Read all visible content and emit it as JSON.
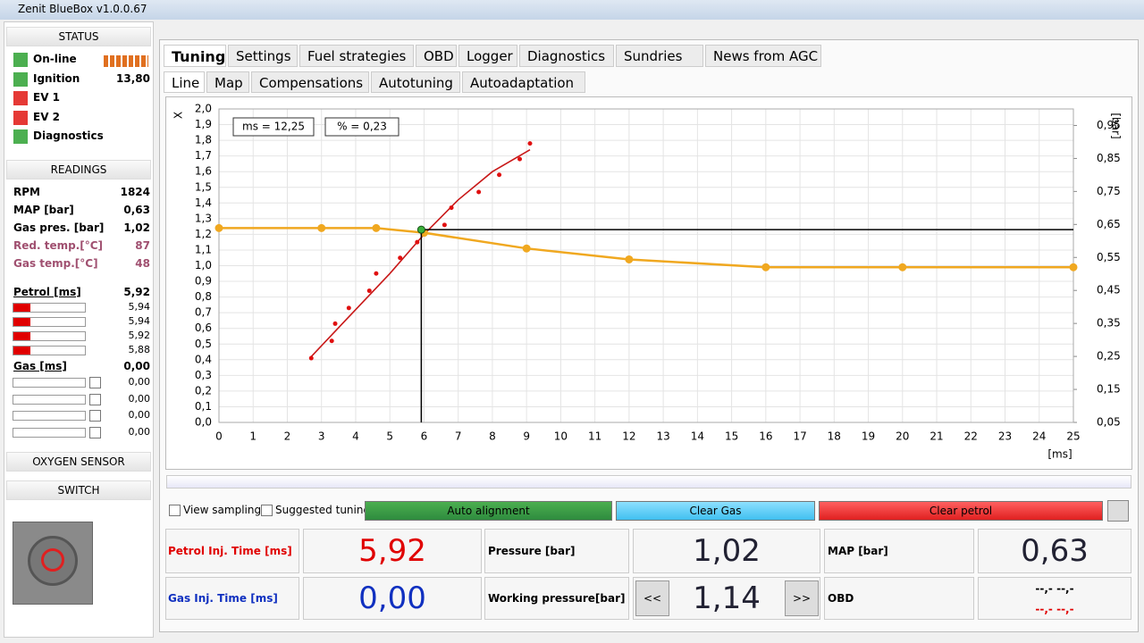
{
  "window": {
    "title": "Zenit BlueBox v1.0.0.67"
  },
  "sidebar": {
    "status": {
      "title": "STATUS",
      "items": [
        {
          "label": "On-line"
        },
        {
          "label": "Ignition",
          "value": "13,80"
        },
        {
          "label": "EV 1"
        },
        {
          "label": "EV 2"
        },
        {
          "label": "Diagnostics"
        }
      ]
    },
    "readings": {
      "title": "READINGS",
      "rows": [
        {
          "label": "RPM",
          "value": "1824"
        },
        {
          "label": "MAP [bar]",
          "value": "0,63"
        },
        {
          "label": "Gas pres. [bar]",
          "value": "1,02"
        },
        {
          "label": "Red. temp.[°C]",
          "value": "87"
        },
        {
          "label": "Gas temp.[°C]",
          "value": "48"
        }
      ]
    },
    "petrol": {
      "label": "Petrol [ms]",
      "value": "5,92",
      "injectors": [
        "5,94",
        "5,94",
        "5,92",
        "5,88"
      ]
    },
    "gas": {
      "label": "Gas [ms]",
      "value": "0,00",
      "injectors": [
        "0,00",
        "0,00",
        "0,00",
        "0,00"
      ]
    },
    "oxygen": {
      "title": "OXYGEN SENSOR"
    },
    "switch": {
      "title": "SWITCH"
    }
  },
  "tabs": [
    "Tuning",
    "Settings",
    "Fuel strategies",
    "OBD",
    "Logger",
    "Diagnostics",
    "Sundries",
    "News from AGC"
  ],
  "subtabs": [
    "Line",
    "Map",
    "Compensations",
    "Autotuning",
    "Autoadaptation"
  ],
  "chart": {
    "type": "line",
    "ylabel": "X",
    "y2label": "[bar]",
    "xlabel": "[ms]",
    "boxes": [
      "ms = 12,25",
      "% = 0,23"
    ],
    "xlim": [
      0,
      25
    ],
    "ylim": [
      0,
      2
    ],
    "y2lim": [
      0.05,
      1.0
    ],
    "grid": true,
    "xticks": [
      0,
      1,
      2,
      3,
      4,
      5,
      6,
      7,
      8,
      9,
      10,
      11,
      12,
      13,
      14,
      15,
      16,
      17,
      18,
      19,
      20,
      21,
      22,
      23,
      24,
      25
    ],
    "yticks": [
      {
        "value": 0,
        "label": "0,0"
      },
      {
        "value": 0.1,
        "label": "0,1"
      },
      {
        "value": 0.2,
        "label": "0,2"
      },
      {
        "value": 0.3,
        "label": "0,3"
      },
      {
        "value": 0.4,
        "label": "0,4"
      },
      {
        "value": 0.5,
        "label": "0,5"
      },
      {
        "value": 0.6,
        "label": "0,6"
      },
      {
        "value": 0.7,
        "label": "0,7"
      },
      {
        "value": 0.8,
        "label": "0,8"
      },
      {
        "value": 0.9,
        "label": "0,9"
      },
      {
        "value": 1.0,
        "label": "1,0"
      },
      {
        "value": 1.1,
        "label": "1,1"
      },
      {
        "value": 1.2,
        "label": "1,2"
      },
      {
        "value": 1.3,
        "label": "1,3"
      },
      {
        "value": 1.4,
        "label": "1,4"
      },
      {
        "value": 1.5,
        "label": "1,5"
      },
      {
        "value": 1.6,
        "label": "1,6"
      },
      {
        "value": 1.7,
        "label": "1,7"
      },
      {
        "value": 1.8,
        "label": "1,8"
      },
      {
        "value": 1.9,
        "label": "1,9"
      },
      {
        "value": 2.0,
        "label": "2,0"
      }
    ],
    "y2ticks": [
      {
        "value": 0.05,
        "label": "0,05"
      },
      {
        "value": 0.15,
        "label": "0,15"
      },
      {
        "value": 0.25,
        "label": "0,25"
      },
      {
        "value": 0.35,
        "label": "0,35"
      },
      {
        "value": 0.45,
        "label": "0,45"
      },
      {
        "value": 0.55,
        "label": "0,55"
      },
      {
        "value": 0.65,
        "label": "0,65"
      },
      {
        "value": 0.75,
        "label": "0,75"
      },
      {
        "value": 0.85,
        "label": "0,85"
      },
      {
        "value": 0.95,
        "label": "0,95"
      }
    ],
    "samples": {
      "color": "#e01010",
      "x": [
        2.7,
        3.3,
        3.4,
        3.8,
        4.4,
        4.6,
        5.3,
        5.8,
        6.6,
        6.8,
        7.6,
        8.2,
        8.8,
        9.1
      ],
      "values": [
        0.41,
        0.52,
        0.63,
        0.73,
        0.84,
        0.95,
        1.05,
        1.15,
        1.26,
        1.37,
        1.47,
        1.58,
        1.68,
        1.78
      ]
    },
    "fit": {
      "color": "#c81818",
      "x": [
        2.7,
        4,
        5,
        6,
        7,
        8,
        9.1
      ],
      "values": [
        0.42,
        0.72,
        0.95,
        1.2,
        1.42,
        1.6,
        1.74
      ]
    },
    "curve": {
      "color": "#f0a820",
      "x": [
        0,
        3,
        4.6,
        6,
        9,
        12,
        16,
        20,
        25
      ],
      "values": [
        1.24,
        1.24,
        1.24,
        1.21,
        1.11,
        1.04,
        0.99,
        0.99,
        0.99
      ]
    },
    "cursor": {
      "x": 5.92,
      "y": 1.23
    }
  },
  "controls": {
    "view_sampling": "View sampling",
    "suggested_tuning": "Suggested tuning",
    "buttons": [
      "Auto alignment",
      "Clear Gas",
      "Clear petrol"
    ]
  },
  "panel": {
    "petrol_label": "Petrol Inj. Time [ms]",
    "petrol_value": "5,92",
    "pressure_label": "Pressure [bar]",
    "pressure_value": "1,02",
    "map_label": "MAP [bar]",
    "map_value": "0,63",
    "gas_label": "Gas Inj. Time [ms]",
    "gas_value": "0,00",
    "working_label": "Working pressure[bar]",
    "prev": "<<",
    "working_value": "1,14",
    "next": ">>",
    "obd_label": "OBD",
    "obd_values": [
      "--,- --,-",
      "--,- --,-"
    ]
  }
}
